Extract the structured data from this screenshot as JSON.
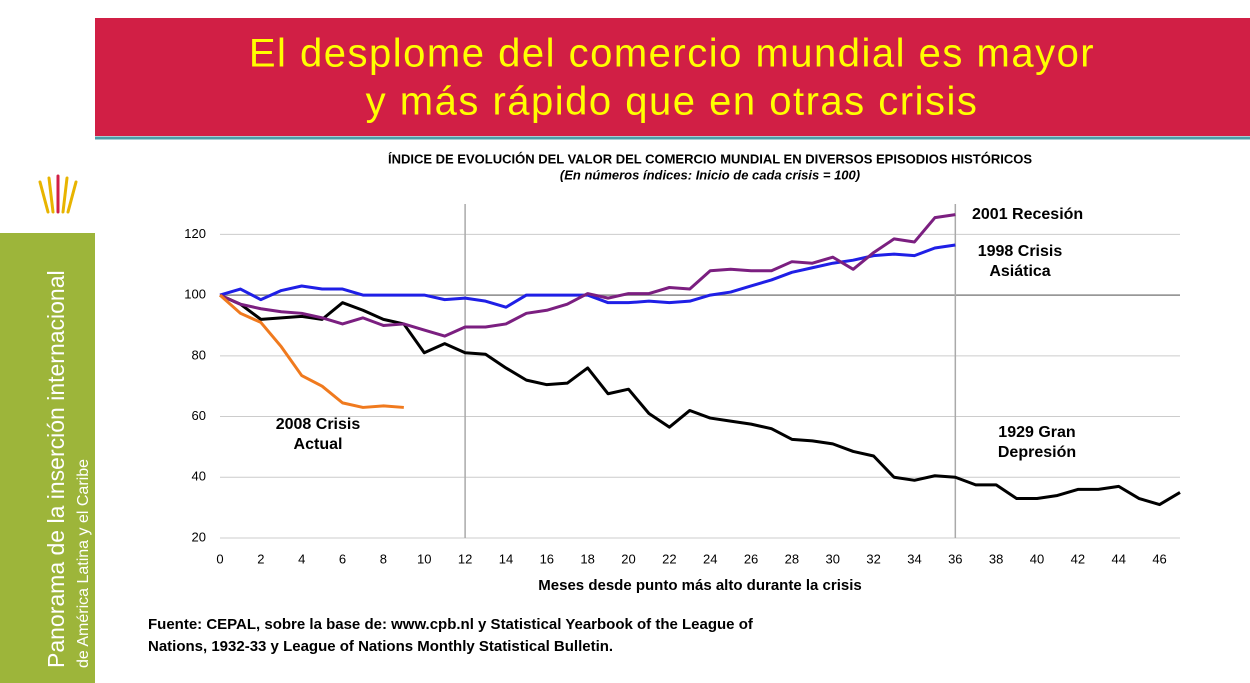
{
  "slide_title": [
    "El desplome del comercio mundial es mayor",
    "y más rápido que en otras crisis"
  ],
  "sidebar": {
    "title": "Panorama de la inserción internacional",
    "subtitle": "de América Latina y el Caribe"
  },
  "chart_data": {
    "type": "line",
    "title": "ÍNDICE DE EVOLUCIÓN DEL VALOR DEL COMERCIO MUNDIAL EN DIVERSOS EPISODIOS HISTÓRICOS",
    "subtitle": "(En números índices: Inicio de cada crisis = 100)",
    "x_label": "Meses desde punto más alto durante la crisis",
    "xlim": [
      0,
      47
    ],
    "ylim": [
      20,
      130
    ],
    "xticks": [
      0,
      2,
      4,
      6,
      8,
      10,
      12,
      14,
      16,
      18,
      20,
      22,
      24,
      26,
      28,
      30,
      32,
      34,
      36,
      38,
      40,
      42,
      44,
      46
    ],
    "yticks": [
      20,
      40,
      60,
      80,
      100,
      120
    ],
    "grid": true,
    "reference_x": [
      12,
      36
    ],
    "series": [
      {
        "label": [
          "1929 Gran",
          "Depresión"
        ],
        "color": "#000000",
        "x": [
          0,
          1,
          2,
          3,
          4,
          5,
          6,
          7,
          8,
          9,
          10,
          11,
          12,
          13,
          14,
          15,
          16,
          17,
          18,
          19,
          20,
          21,
          22,
          23,
          24,
          25,
          26,
          27,
          28,
          29,
          30,
          31,
          32,
          33,
          34,
          35,
          36,
          37,
          38,
          39,
          40,
          41,
          42,
          43,
          44,
          45,
          46,
          47
        ],
        "values": [
          100,
          97,
          92,
          92.5,
          93,
          92,
          97.5,
          95,
          92,
          90.5,
          81,
          84,
          81,
          80.5,
          76,
          72,
          70.5,
          71,
          76,
          67.5,
          69,
          61,
          56.5,
          62,
          59.5,
          58.5,
          57.5,
          56,
          52.5,
          52,
          51,
          48.5,
          47,
          40,
          39,
          40.5,
          40,
          37.5,
          37.5,
          33,
          33,
          34,
          36,
          36,
          37,
          33,
          31,
          35
        ]
      },
      {
        "label": [
          "1998 Crisis",
          "Asiática"
        ],
        "color": "#1f1fe6",
        "x": [
          0,
          1,
          2,
          3,
          4,
          5,
          6,
          7,
          8,
          9,
          10,
          11,
          12,
          13,
          14,
          15,
          16,
          17,
          18,
          19,
          20,
          21,
          22,
          23,
          24,
          25,
          26,
          27,
          28,
          29,
          30,
          31,
          32,
          33,
          34,
          35,
          36
        ],
        "values": [
          100,
          102,
          98.5,
          101.5,
          103,
          102,
          102,
          100,
          100,
          100,
          100,
          98.5,
          99,
          98,
          96,
          100,
          100,
          100,
          100,
          97.5,
          97.5,
          98,
          97.5,
          98,
          100,
          101,
          103,
          105,
          107.5,
          109,
          110.5,
          111.5,
          113,
          113.5,
          113,
          115.5,
          116.5
        ]
      },
      {
        "label": [
          "2001 Recesión"
        ],
        "color": "#7b1f80",
        "x": [
          0,
          1,
          2,
          3,
          4,
          5,
          6,
          7,
          8,
          9,
          10,
          11,
          12,
          13,
          14,
          15,
          16,
          17,
          18,
          19,
          20,
          21,
          22,
          23,
          24,
          25,
          26,
          27,
          28,
          29,
          30,
          31,
          32,
          33,
          34,
          35,
          36
        ],
        "values": [
          100,
          97,
          95.5,
          94.5,
          94,
          92.5,
          90.5,
          92.5,
          90,
          90.5,
          88.5,
          86.5,
          89.5,
          89.5,
          90.5,
          94,
          95,
          97,
          100.5,
          99,
          100.5,
          100.5,
          102.5,
          102,
          108,
          108.5,
          108,
          108,
          111,
          110.5,
          112.5,
          108.5,
          114,
          118.5,
          117.5,
          125.5,
          126.5
        ]
      },
      {
        "label": [
          "2008 Crisis",
          "Actual"
        ],
        "color": "#f07a1e",
        "x": [
          0,
          1,
          2,
          3,
          4,
          5,
          6,
          7,
          8,
          9
        ],
        "values": [
          100,
          94,
          91,
          83,
          73.5,
          70,
          64.5,
          63,
          63.5,
          63
        ]
      }
    ],
    "source": [
      "Fuente: CEPAL, sobre la base de: www.cpb.nl y Statistical Yearbook of the League of",
      "Nations, 1932-33 y League of Nations Monthly Statistical Bulletin."
    ]
  }
}
